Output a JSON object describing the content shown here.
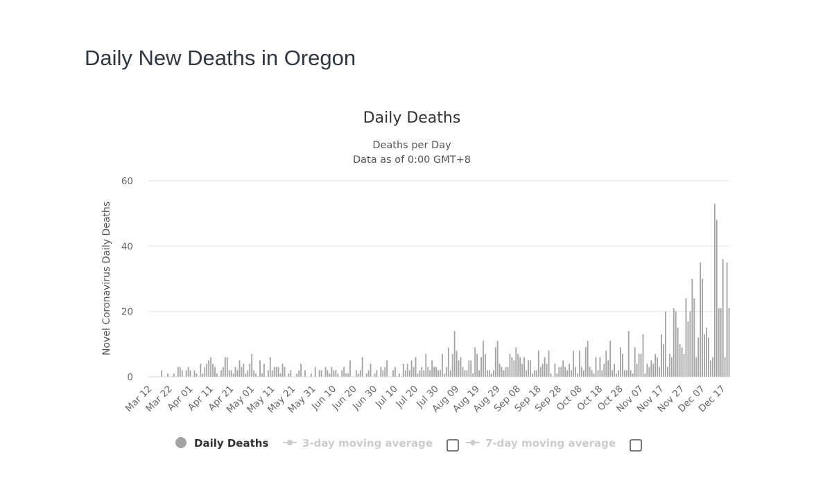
{
  "page": {
    "title": "Daily New Deaths in Oregon"
  },
  "colors": {
    "bar": "#a3a3a3",
    "grid": "#e6e6e6",
    "axis_text": "#666666",
    "title": "#333333",
    "legend_inactive": "#cccccc"
  },
  "legend": {
    "items": [
      {
        "label": "Daily Deaths",
        "active": true,
        "checkbox": false
      },
      {
        "label": "3-day moving average",
        "active": false,
        "checkbox": true
      },
      {
        "label": "7-day moving average",
        "active": false,
        "checkbox": true
      }
    ]
  },
  "chart_data": {
    "type": "bar",
    "title": "Daily Deaths",
    "subtitle_lines": [
      "Deaths per Day",
      "Data as of 0:00 GMT+8"
    ],
    "xlabel": "",
    "ylabel": "Novel Coronavirus Daily Deaths",
    "ylim": [
      0,
      60
    ],
    "yticks": [
      0,
      20,
      40,
      60
    ],
    "grid": true,
    "xtick_labels": [
      "Mar 12",
      "Mar 22",
      "Apr 01",
      "Apr 11",
      "Apr 21",
      "May 01",
      "May 11",
      "May 21",
      "May 31",
      "Jun 10",
      "Jun 20",
      "Jun 30",
      "Jul 10",
      "Jul 20",
      "Jul 30",
      "Aug 09",
      "Aug 19",
      "Aug 29",
      "Sep 08",
      "Sep 18",
      "Sep 28",
      "Oct 08",
      "Oct 18",
      "Oct 28",
      "Nov 07",
      "Nov 17",
      "Nov 27",
      "Dec 07",
      "Dec 17"
    ],
    "xtick_every": 10,
    "series": [
      {
        "name": "Daily Deaths",
        "start_date": "Mar 12",
        "values": [
          0,
          0,
          0,
          0,
          0,
          0,
          2,
          0,
          0,
          1,
          0,
          0,
          1,
          0,
          3,
          3,
          2,
          0,
          2,
          3,
          2,
          0,
          2,
          1,
          0,
          4,
          1,
          3,
          4,
          5,
          6,
          4,
          3,
          1,
          0,
          2,
          3,
          6,
          6,
          2,
          2,
          1,
          3,
          2,
          5,
          3,
          4,
          1,
          2,
          4,
          7,
          2,
          1,
          0,
          5,
          1,
          4,
          0,
          2,
          6,
          2,
          3,
          3,
          3,
          1,
          4,
          3,
          0,
          1,
          2,
          0,
          0,
          1,
          2,
          4,
          0,
          2,
          0,
          0,
          1,
          0,
          3,
          0,
          2,
          2,
          0,
          3,
          2,
          1,
          3,
          2,
          2,
          1,
          0,
          2,
          3,
          1,
          1,
          5,
          0,
          0,
          2,
          1,
          2,
          6,
          0,
          1,
          2,
          4,
          0,
          1,
          2,
          0,
          3,
          2,
          3,
          5,
          0,
          0,
          2,
          3,
          0,
          1,
          0,
          4,
          2,
          4,
          2,
          5,
          3,
          6,
          1,
          2,
          3,
          2,
          7,
          3,
          2,
          5,
          3,
          3,
          2,
          2,
          7,
          1,
          3,
          9,
          2,
          7,
          14,
          8,
          5,
          6,
          3,
          2,
          2,
          5,
          5,
          1,
          9,
          7,
          2,
          6,
          11,
          7,
          2,
          2,
          1,
          2,
          9,
          11,
          4,
          3,
          2,
          3,
          3,
          7,
          6,
          5,
          9,
          7,
          6,
          4,
          6,
          2,
          5,
          5,
          1,
          2,
          2,
          8,
          3,
          4,
          6,
          4,
          8,
          1,
          0,
          4,
          1,
          3,
          3,
          5,
          3,
          2,
          4,
          2,
          8,
          3,
          1,
          8,
          3,
          2,
          9,
          11,
          3,
          2,
          1,
          6,
          2,
          6,
          2,
          4,
          8,
          5,
          11,
          2,
          4,
          1,
          2,
          9,
          7,
          2,
          2,
          14,
          2,
          1,
          9,
          4,
          7,
          7,
          13,
          1,
          4,
          3,
          5,
          4,
          7,
          6,
          3,
          13,
          10,
          20,
          3,
          7,
          6,
          21,
          20,
          15,
          10,
          9,
          7,
          24,
          17,
          20,
          30,
          24,
          6,
          12,
          35,
          30,
          13,
          15,
          12,
          5,
          6,
          53,
          48,
          21,
          21,
          36,
          6,
          35,
          21
        ]
      }
    ]
  }
}
